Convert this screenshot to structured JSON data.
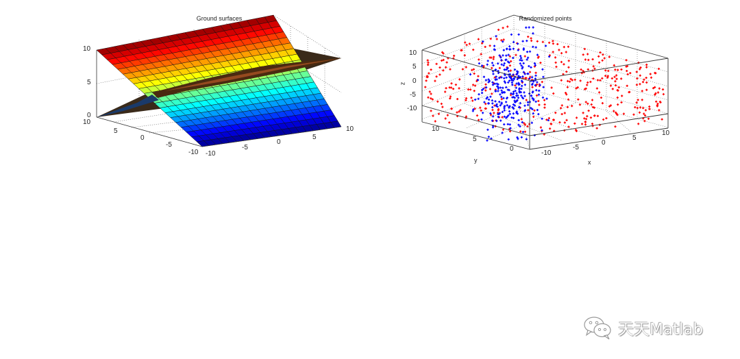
{
  "figure": {
    "left_plot": {
      "title": "Ground surfaces",
      "z_ticks": [
        "10",
        "5",
        "0"
      ],
      "y_ticks": [
        "10",
        "5",
        "0",
        "-5",
        "-10"
      ],
      "x_ticks": [
        "-10",
        "-5",
        "0",
        "5",
        "10"
      ]
    },
    "right_plot": {
      "title": "Randomized points",
      "z_ticks": [
        "10",
        "5",
        "0",
        "-5",
        "-10"
      ],
      "y_ticks": [
        "10",
        "5",
        "0"
      ],
      "x_ticks": [
        "-10",
        "-5",
        "0",
        "5",
        "10"
      ],
      "xlabel": "x",
      "ylabel": "y",
      "zlabel": "z"
    }
  },
  "watermark": {
    "text": "天天Matlab",
    "icon": "wechat-icon"
  },
  "colors": {
    "ground_points": "#ff0000",
    "object_points": "#0000ff"
  },
  "chart_data": [
    {
      "type": "surface",
      "title": "Ground surfaces",
      "xlabel": "",
      "ylabel": "",
      "zlabel": "",
      "xlim": [
        -10,
        10
      ],
      "ylim": [
        -10,
        10
      ],
      "zlim": [
        0,
        10
      ],
      "x_ticks": [
        -10,
        -5,
        0,
        5,
        10
      ],
      "y_ticks": [
        -10,
        -5,
        0,
        5,
        10
      ],
      "z_ticks": [
        0,
        5,
        10
      ],
      "grid": true,
      "colormap": "jet",
      "series": [
        {
          "name": "plane 1 (colored, jet by z)",
          "description": "tilted plane, z = 10 at y = 10 down to z = 0 at y = -10",
          "grid_cells": 20
        },
        {
          "name": "plane 2 (dense dark mesh)",
          "description": "tilted plane, z rises from 0 at x = -10 to ~10 at x = 10"
        }
      ]
    },
    {
      "type": "scatter",
      "title": "Randomized points",
      "xlabel": "x",
      "ylabel": "y",
      "zlabel": "z",
      "xlim": [
        -10,
        10
      ],
      "ylim": [
        -2,
        12
      ],
      "zlim": [
        -12,
        12
      ],
      "x_ticks": [
        -10,
        -5,
        0,
        5,
        10
      ],
      "y_ticks": [
        0,
        5,
        10
      ],
      "z_ticks": [
        -10,
        -5,
        0,
        5,
        10
      ],
      "grid": true,
      "series": [
        {
          "name": "red points",
          "color": "#ff0000",
          "marker": "+",
          "description": "uniformly spread across the whole box"
        },
        {
          "name": "blue points",
          "color": "#0000ff",
          "marker": "*",
          "description": "concentrated near center column x≈-5..0"
        }
      ]
    }
  ]
}
